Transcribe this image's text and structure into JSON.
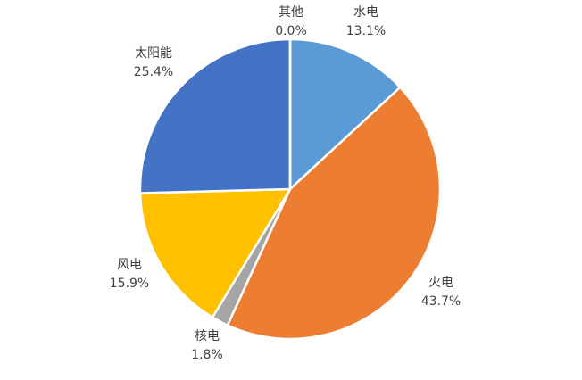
{
  "chart_data": {
    "type": "pie",
    "title": "",
    "slices": [
      {
        "label": "水电",
        "value": 13.1,
        "value_text": "13.1%",
        "color": "#5B9BD5"
      },
      {
        "label": "火电",
        "value": 43.7,
        "value_text": "43.7%",
        "color": "#ED7D31"
      },
      {
        "label": "核电",
        "value": 1.8,
        "value_text": "1.8%",
        "color": "#A5A5A5"
      },
      {
        "label": "风电",
        "value": 15.9,
        "value_text": "15.9%",
        "color": "#FFC000"
      },
      {
        "label": "太阳能",
        "value": 25.4,
        "value_text": "25.4%",
        "color": "#4472C4"
      },
      {
        "label": "其他",
        "value": 0.0,
        "value_text": "0.0%",
        "color": "#70AD47"
      }
    ],
    "start_angle": "12 o'clock",
    "direction": "clockwise",
    "legend": "none"
  }
}
